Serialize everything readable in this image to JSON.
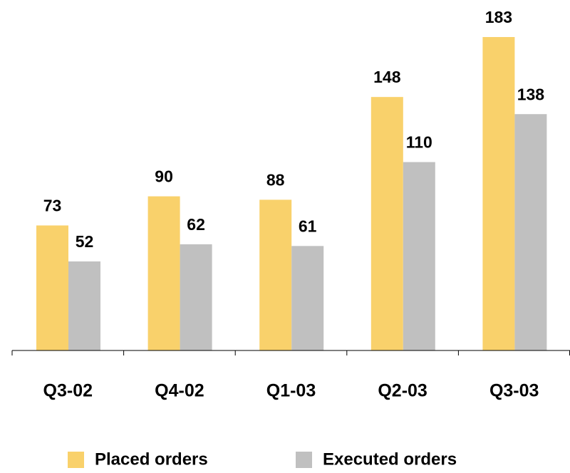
{
  "chart_data": {
    "type": "bar",
    "categories": [
      "Q3-02",
      "Q4-02",
      "Q1-03",
      "Q2-03",
      "Q3-03"
    ],
    "series": [
      {
        "name": "Placed orders",
        "color": "#f9d16b",
        "values": [
          73,
          90,
          88,
          148,
          183
        ]
      },
      {
        "name": "Executed orders",
        "color": "#c0c0c0",
        "values": [
          52,
          62,
          61,
          110,
          138
        ]
      }
    ]
  }
}
